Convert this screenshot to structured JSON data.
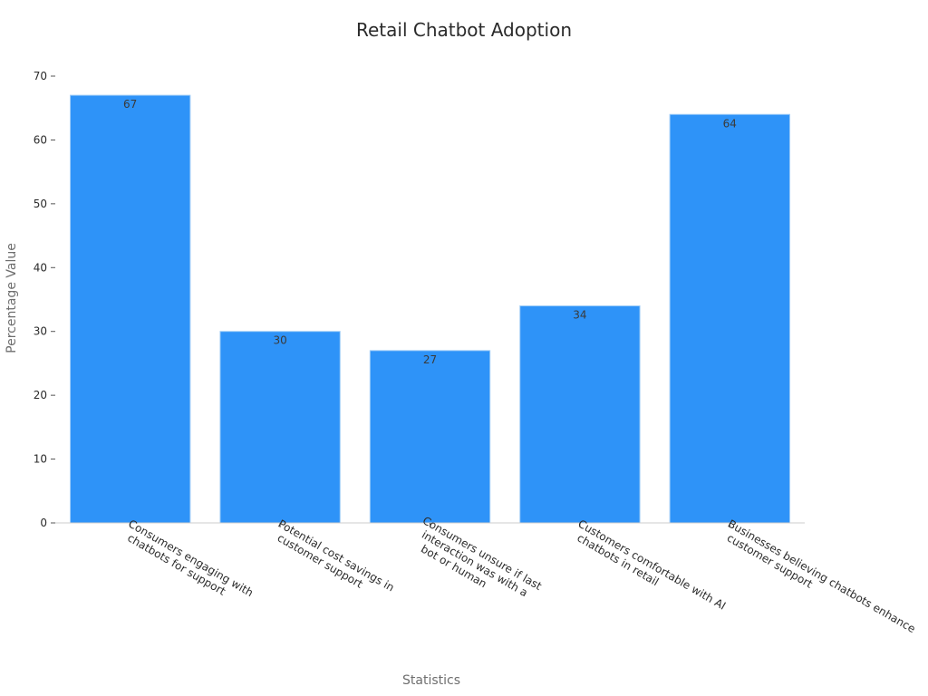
{
  "chart_data": {
    "type": "bar",
    "title": "Retail Chatbot Adoption",
    "xlabel": "Statistics",
    "ylabel": "Percentage Value",
    "ylim": [
      0,
      70
    ],
    "yticks": [
      0,
      10,
      20,
      30,
      40,
      50,
      60,
      70
    ],
    "categories": [
      [
        "Consumers engaging with",
        "chatbots for support"
      ],
      [
        "Potential cost savings in",
        "customer support"
      ],
      [
        "Consumers unsure if last",
        "interaction was with a",
        "bot or human"
      ],
      [
        "Customers comfortable with AI",
        "chatbots in retail"
      ],
      [
        "Businesses believing chatbots enhance",
        "customer support"
      ]
    ],
    "values": [
      67,
      30,
      27,
      34,
      64
    ],
    "bar_color": "#2e93f8",
    "grid": false,
    "legend": "none"
  }
}
